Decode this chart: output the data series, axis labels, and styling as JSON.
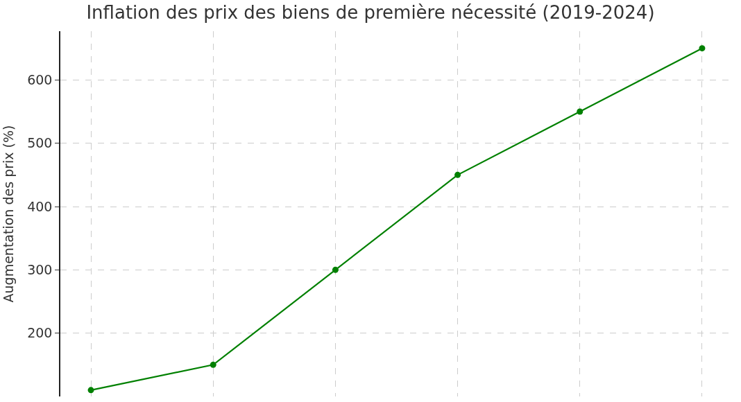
{
  "chart_data": {
    "type": "line",
    "title": "Inflation des prix des biens de première nécessité (2019-2024)",
    "ylabel": "Augmentation des prix (%)",
    "categories": [
      null,
      null,
      null,
      null,
      null,
      null
    ],
    "series": [
      {
        "color": "#008000",
        "values": [
          110,
          150,
          300,
          450,
          550,
          650
        ]
      }
    ],
    "ylim": [
      100,
      677
    ],
    "yticks": [
      200,
      300,
      400,
      500,
      600
    ],
    "grid": true,
    "marker": "circle",
    "line_style": "solid",
    "tick_labels": "y"
  }
}
